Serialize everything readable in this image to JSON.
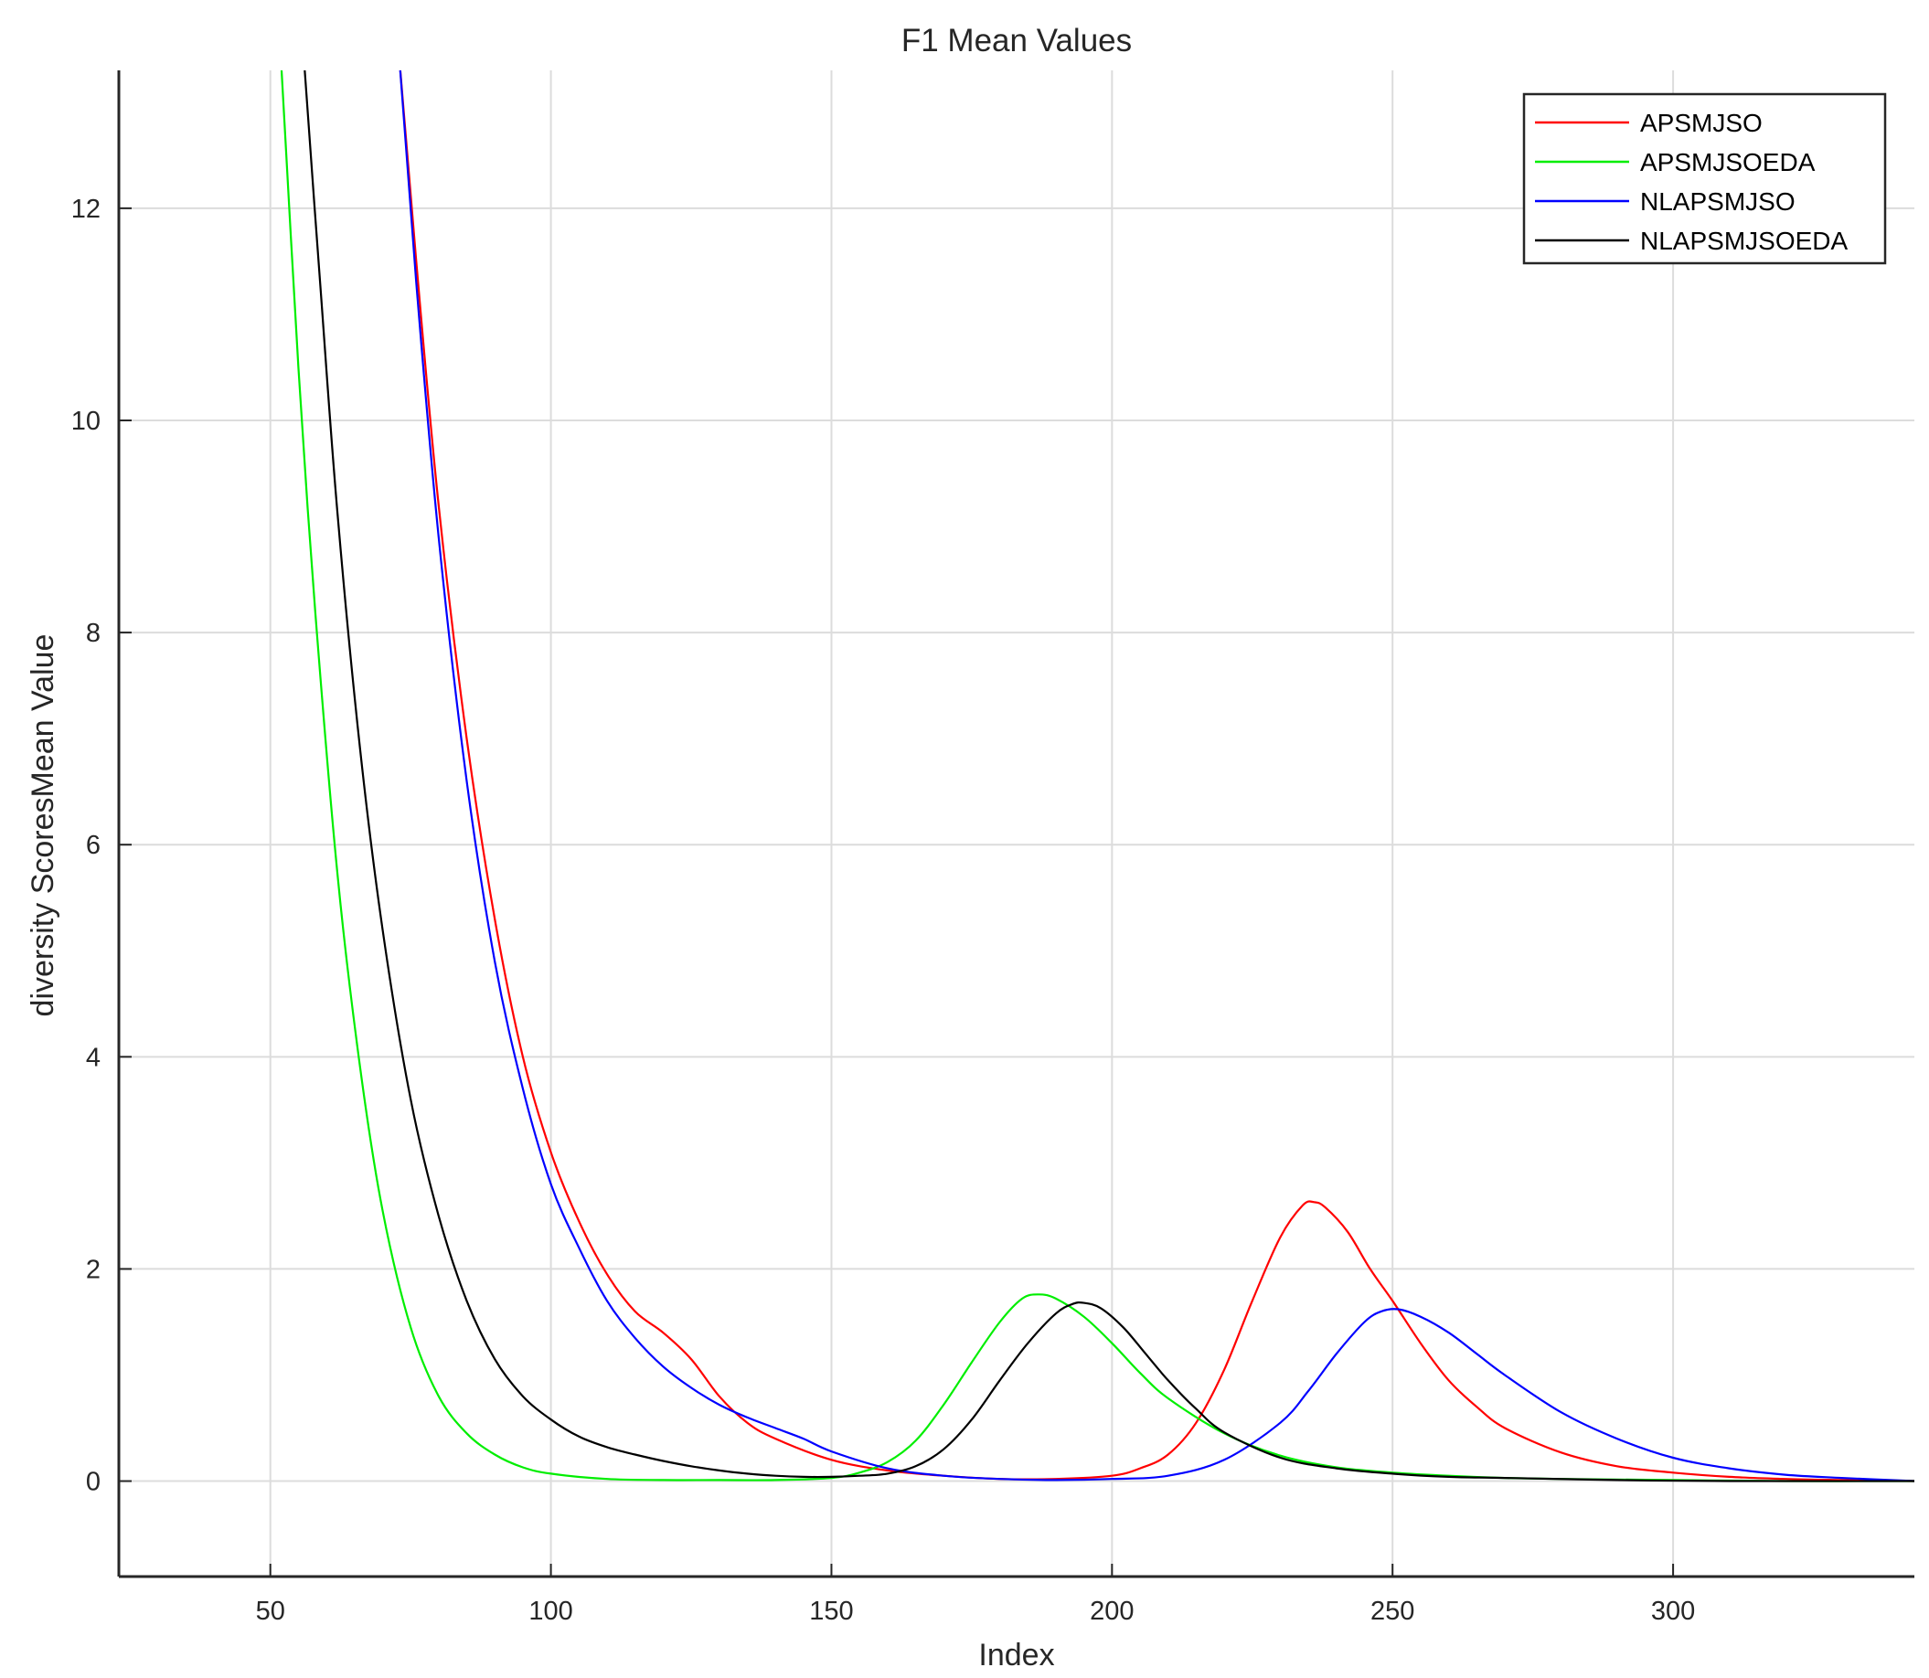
{
  "chart_data": {
    "type": "line",
    "title": "F1 Mean Values",
    "xlabel": "Index",
    "ylabel": "diversity ScoresMean Value",
    "xlim": [
      23,
      343
    ],
    "ylim": [
      -0.9,
      13.3
    ],
    "xticks": [
      50,
      100,
      150,
      200,
      250,
      300
    ],
    "yticks": [
      0,
      2,
      4,
      6,
      8,
      10,
      12
    ],
    "grid": true,
    "legend_position": "top-right",
    "series": [
      {
        "name": "APSMJSO",
        "color": "#ff0000",
        "x": [
          70,
          73,
          76,
          80,
          85,
          90,
          95,
          100,
          105,
          110,
          115,
          120,
          125,
          130,
          135,
          140,
          150,
          160,
          170,
          180,
          190,
          200,
          205,
          210,
          215,
          220,
          225,
          230,
          234,
          236,
          238,
          242,
          246,
          250,
          255,
          260,
          265,
          270,
          280,
          290,
          300,
          310,
          320,
          330,
          343
        ],
        "y": [
          15.0,
          13.4,
          11.5,
          9.2,
          7.0,
          5.3,
          4.0,
          3.1,
          2.45,
          1.95,
          1.6,
          1.4,
          1.15,
          0.8,
          0.55,
          0.4,
          0.2,
          0.1,
          0.05,
          0.02,
          0.02,
          0.05,
          0.12,
          0.25,
          0.55,
          1.05,
          1.7,
          2.3,
          2.6,
          2.63,
          2.58,
          2.35,
          2.0,
          1.7,
          1.3,
          0.95,
          0.7,
          0.5,
          0.27,
          0.14,
          0.08,
          0.04,
          0.02,
          0.01,
          0.0
        ]
      },
      {
        "name": "APSMJSOEDA",
        "color": "#00ee00",
        "x": [
          50,
          52,
          55,
          58,
          62,
          66,
          70,
          75,
          80,
          85,
          90,
          95,
          100,
          110,
          120,
          130,
          140,
          150,
          155,
          160,
          165,
          170,
          175,
          180,
          184,
          187,
          190,
          195,
          200,
          205,
          210,
          220,
          230,
          240,
          250,
          260,
          270,
          280,
          300,
          320,
          343
        ],
        "y": [
          15.0,
          13.3,
          10.5,
          8.2,
          5.7,
          3.9,
          2.55,
          1.45,
          0.8,
          0.45,
          0.25,
          0.13,
          0.07,
          0.02,
          0.01,
          0.01,
          0.01,
          0.03,
          0.08,
          0.18,
          0.38,
          0.72,
          1.12,
          1.5,
          1.72,
          1.76,
          1.72,
          1.55,
          1.3,
          1.02,
          0.78,
          0.45,
          0.24,
          0.13,
          0.08,
          0.05,
          0.03,
          0.02,
          0.01,
          0.0,
          0.0
        ]
      },
      {
        "name": "NLAPSMJSO",
        "color": "#0000ff",
        "x": [
          70,
          73,
          76,
          80,
          85,
          90,
          95,
          100,
          105,
          110,
          115,
          120,
          125,
          130,
          135,
          140,
          145,
          150,
          160,
          170,
          180,
          190,
          200,
          210,
          220,
          230,
          235,
          240,
          245,
          248,
          251,
          255,
          260,
          265,
          270,
          280,
          290,
          300,
          310,
          320,
          330,
          343
        ],
        "y": [
          15.0,
          13.4,
          11.3,
          8.9,
          6.6,
          4.9,
          3.7,
          2.8,
          2.2,
          1.7,
          1.35,
          1.08,
          0.88,
          0.72,
          0.6,
          0.5,
          0.4,
          0.28,
          0.12,
          0.05,
          0.02,
          0.01,
          0.02,
          0.05,
          0.2,
          0.55,
          0.85,
          1.2,
          1.5,
          1.6,
          1.62,
          1.55,
          1.4,
          1.2,
          1.0,
          0.65,
          0.4,
          0.22,
          0.12,
          0.06,
          0.03,
          0.0
        ]
      },
      {
        "name": "NLAPSMJSOEDA",
        "color": "#000000",
        "x": [
          54,
          56,
          59,
          62,
          66,
          70,
          75,
          80,
          85,
          90,
          95,
          100,
          105,
          110,
          115,
          120,
          125,
          130,
          135,
          140,
          145,
          150,
          155,
          160,
          165,
          170,
          175,
          180,
          185,
          190,
          193,
          195,
          198,
          202,
          206,
          210,
          215,
          220,
          230,
          240,
          250,
          260,
          270,
          290,
          310,
          343
        ],
        "y": [
          15.0,
          13.4,
          11.2,
          9.1,
          6.9,
          5.2,
          3.6,
          2.5,
          1.7,
          1.15,
          0.8,
          0.58,
          0.42,
          0.32,
          0.25,
          0.19,
          0.14,
          0.1,
          0.07,
          0.05,
          0.04,
          0.04,
          0.05,
          0.07,
          0.14,
          0.3,
          0.58,
          0.95,
          1.3,
          1.58,
          1.67,
          1.68,
          1.63,
          1.45,
          1.2,
          0.95,
          0.68,
          0.46,
          0.22,
          0.12,
          0.07,
          0.04,
          0.03,
          0.01,
          0.0,
          0.0
        ]
      }
    ]
  }
}
